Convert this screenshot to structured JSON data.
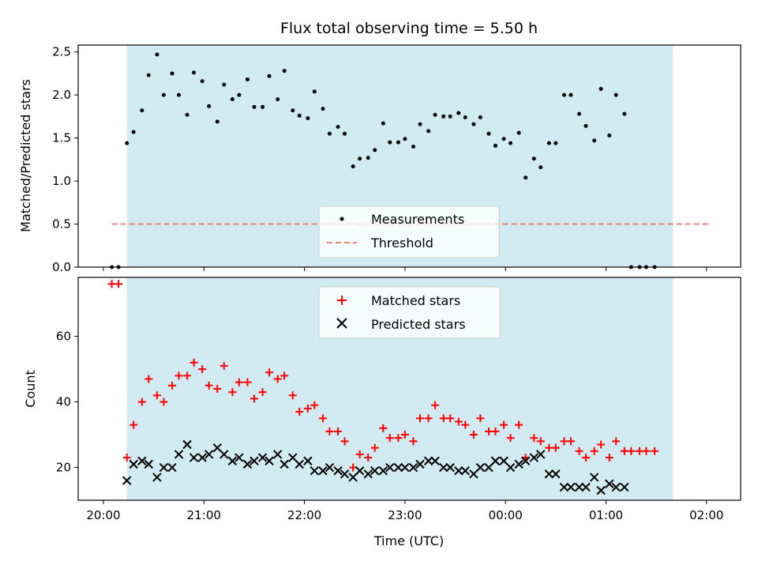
{
  "chart_data": [
    {
      "type": "scatter",
      "title": "Flux total observing time = 5.50 h",
      "xlabel": "",
      "ylabel": "Matched/Predicted stars",
      "ylim": [
        0,
        2.58
      ],
      "yticks": [
        "0.0",
        "0.5",
        "1.0",
        "1.5",
        "2.0",
        "2.5"
      ],
      "ytick_values": [
        0,
        0.5,
        1.0,
        1.5,
        2.0,
        2.5
      ],
      "xlim": [
        "20:00",
        "02:00"
      ],
      "shaded_range": [
        "20:14",
        "01:40"
      ],
      "shade_color": "#add8e6",
      "grid": false,
      "legend_placement": "lower center",
      "legend": [
        {
          "label": "Measurements",
          "marker": "dot",
          "color": "#000000"
        },
        {
          "label": "Threshold",
          "marker": "dashed-line",
          "color": "#f08080"
        }
      ],
      "threshold": {
        "value": 0.5,
        "x_range": [
          "20:05",
          "02:02"
        ],
        "color": "#f08080"
      },
      "series": [
        {
          "name": "Measurements",
          "points": [
            [
              "20:05",
              0.0
            ],
            [
              "20:09",
              0.0
            ],
            [
              "20:14",
              1.44
            ],
            [
              "20:18",
              1.57
            ],
            [
              "20:23",
              1.82
            ],
            [
              "20:27",
              2.23
            ],
            [
              "20:32",
              2.47
            ],
            [
              "20:36",
              2.0
            ],
            [
              "20:41",
              2.25
            ],
            [
              "20:45",
              2.0
            ],
            [
              "20:50",
              1.77
            ],
            [
              "20:54",
              2.26
            ],
            [
              "20:59",
              2.16
            ],
            [
              "21:03",
              1.87
            ],
            [
              "21:08",
              1.69
            ],
            [
              "21:12",
              2.12
            ],
            [
              "21:17",
              1.95
            ],
            [
              "21:21",
              2.0
            ],
            [
              "21:26",
              2.18
            ],
            [
              "21:30",
              1.86
            ],
            [
              "21:35",
              1.86
            ],
            [
              "21:39",
              2.22
            ],
            [
              "21:44",
              1.95
            ],
            [
              "21:48",
              2.28
            ],
            [
              "21:53",
              1.82
            ],
            [
              "21:57",
              1.76
            ],
            [
              "22:02",
              1.73
            ],
            [
              "22:06",
              2.04
            ],
            [
              "22:11",
              1.84
            ],
            [
              "22:15",
              1.55
            ],
            [
              "22:20",
              1.63
            ],
            [
              "22:24",
              1.55
            ],
            [
              "22:29",
              1.17
            ],
            [
              "22:33",
              1.26
            ],
            [
              "22:38",
              1.27
            ],
            [
              "22:42",
              1.36
            ],
            [
              "22:47",
              1.67
            ],
            [
              "22:51",
              1.45
            ],
            [
              "22:56",
              1.45
            ],
            [
              "23:00",
              1.49
            ],
            [
              "23:05",
              1.4
            ],
            [
              "23:09",
              1.66
            ],
            [
              "23:14",
              1.58
            ],
            [
              "23:18",
              1.77
            ],
            [
              "23:23",
              1.75
            ],
            [
              "23:27",
              1.75
            ],
            [
              "23:32",
              1.79
            ],
            [
              "23:36",
              1.74
            ],
            [
              "23:41",
              1.66
            ],
            [
              "23:45",
              1.74
            ],
            [
              "23:50",
              1.55
            ],
            [
              "23:54",
              1.41
            ],
            [
              "23:59",
              1.49
            ],
            [
              "00:03",
              1.44
            ],
            [
              "00:08",
              1.56
            ],
            [
              "00:12",
              1.04
            ],
            [
              "00:17",
              1.26
            ],
            [
              "00:21",
              1.16
            ],
            [
              "00:26",
              1.44
            ],
            [
              "00:30",
              1.44
            ],
            [
              "00:35",
              2.0
            ],
            [
              "00:39",
              2.0
            ],
            [
              "00:44",
              1.78
            ],
            [
              "00:48",
              1.64
            ],
            [
              "00:53",
              1.47
            ],
            [
              "00:57",
              2.07
            ],
            [
              "01:02",
              1.53
            ],
            [
              "01:06",
              2.0
            ],
            [
              "01:11",
              1.78
            ],
            [
              "01:15",
              0.0
            ],
            [
              "01:20",
              0.0
            ],
            [
              "01:24",
              0.0
            ],
            [
              "01:29",
              0.0
            ]
          ]
        }
      ]
    },
    {
      "type": "scatter",
      "title": "",
      "xlabel": "Time (UTC)",
      "ylabel": "Count",
      "ylim": [
        10,
        78
      ],
      "yticks": [
        "20",
        "40",
        "60"
      ],
      "ytick_values": [
        20,
        40,
        60
      ],
      "xlim": [
        "20:00",
        "02:00"
      ],
      "xticks": [
        "20:00",
        "21:00",
        "22:00",
        "23:00",
        "00:00",
        "01:00",
        "02:00"
      ],
      "shaded_range": [
        "20:14",
        "01:40"
      ],
      "shade_color": "#add8e6",
      "grid": false,
      "legend_placement": "upper center",
      "legend": [
        {
          "label": "Matched stars",
          "marker": "plus",
          "color": "#ff0000"
        },
        {
          "label": "Predicted stars",
          "marker": "x",
          "color": "#000000"
        }
      ],
      "series": [
        {
          "name": "Matched stars",
          "points": [
            [
              "20:05",
              76
            ],
            [
              "20:09",
              76
            ],
            [
              "20:14",
              23
            ],
            [
              "20:18",
              33
            ],
            [
              "20:23",
              40
            ],
            [
              "20:27",
              47
            ],
            [
              "20:32",
              42
            ],
            [
              "20:36",
              40
            ],
            [
              "20:41",
              45
            ],
            [
              "20:45",
              48
            ],
            [
              "20:50",
              48
            ],
            [
              "20:54",
              52
            ],
            [
              "20:59",
              50
            ],
            [
              "21:03",
              45
            ],
            [
              "21:08",
              44
            ],
            [
              "21:12",
              51
            ],
            [
              "21:17",
              43
            ],
            [
              "21:21",
              46
            ],
            [
              "21:26",
              46
            ],
            [
              "21:30",
              41
            ],
            [
              "21:35",
              43
            ],
            [
              "21:39",
              49
            ],
            [
              "21:44",
              47
            ],
            [
              "21:48",
              48
            ],
            [
              "21:53",
              42
            ],
            [
              "21:57",
              37
            ],
            [
              "22:02",
              38
            ],
            [
              "22:06",
              39
            ],
            [
              "22:11",
              35
            ],
            [
              "22:15",
              31
            ],
            [
              "22:20",
              31
            ],
            [
              "22:24",
              28
            ],
            [
              "22:29",
              20
            ],
            [
              "22:33",
              24
            ],
            [
              "22:38",
              23
            ],
            [
              "22:42",
              26
            ],
            [
              "22:47",
              32
            ],
            [
              "22:51",
              29
            ],
            [
              "22:56",
              29
            ],
            [
              "23:00",
              30
            ],
            [
              "23:05",
              28
            ],
            [
              "23:09",
              35
            ],
            [
              "23:14",
              35
            ],
            [
              "23:18",
              39
            ],
            [
              "23:23",
              35
            ],
            [
              "23:27",
              35
            ],
            [
              "23:32",
              34
            ],
            [
              "23:36",
              33
            ],
            [
              "23:41",
              30
            ],
            [
              "23:45",
              35
            ],
            [
              "23:50",
              31
            ],
            [
              "23:54",
              31
            ],
            [
              "23:59",
              33
            ],
            [
              "00:03",
              29
            ],
            [
              "00:08",
              33
            ],
            [
              "00:12",
              23
            ],
            [
              "00:17",
              29
            ],
            [
              "00:21",
              28
            ],
            [
              "00:26",
              26
            ],
            [
              "00:30",
              26
            ],
            [
              "00:35",
              28
            ],
            [
              "00:39",
              28
            ],
            [
              "00:44",
              25
            ],
            [
              "00:48",
              23
            ],
            [
              "00:53",
              25
            ],
            [
              "00:57",
              27
            ],
            [
              "01:02",
              23
            ],
            [
              "01:06",
              28
            ],
            [
              "01:11",
              25
            ],
            [
              "01:15",
              25
            ],
            [
              "01:20",
              25
            ],
            [
              "01:24",
              25
            ],
            [
              "01:29",
              25
            ]
          ]
        },
        {
          "name": "Predicted stars",
          "points": [
            [
              "20:14",
              16
            ],
            [
              "20:18",
              21
            ],
            [
              "20:23",
              22
            ],
            [
              "20:27",
              21
            ],
            [
              "20:32",
              17
            ],
            [
              "20:36",
              20
            ],
            [
              "20:41",
              20
            ],
            [
              "20:45",
              24
            ],
            [
              "20:50",
              27
            ],
            [
              "20:54",
              23
            ],
            [
              "20:59",
              23
            ],
            [
              "21:03",
              24
            ],
            [
              "21:08",
              26
            ],
            [
              "21:12",
              24
            ],
            [
              "21:17",
              22
            ],
            [
              "21:21",
              23
            ],
            [
              "21:26",
              21
            ],
            [
              "21:30",
              22
            ],
            [
              "21:35",
              23
            ],
            [
              "21:39",
              22
            ],
            [
              "21:44",
              24
            ],
            [
              "21:48",
              21
            ],
            [
              "21:53",
              23
            ],
            [
              "21:57",
              21
            ],
            [
              "22:02",
              22
            ],
            [
              "22:06",
              19
            ],
            [
              "22:11",
              19
            ],
            [
              "22:15",
              20
            ],
            [
              "22:20",
              19
            ],
            [
              "22:24",
              18
            ],
            [
              "22:29",
              17
            ],
            [
              "22:33",
              19
            ],
            [
              "22:38",
              18
            ],
            [
              "22:42",
              19
            ],
            [
              "22:47",
              19
            ],
            [
              "22:51",
              20
            ],
            [
              "22:56",
              20
            ],
            [
              "23:00",
              20
            ],
            [
              "23:05",
              20
            ],
            [
              "23:09",
              21
            ],
            [
              "23:14",
              22
            ],
            [
              "23:18",
              22
            ],
            [
              "23:23",
              20
            ],
            [
              "23:27",
              20
            ],
            [
              "23:32",
              19
            ],
            [
              "23:36",
              19
            ],
            [
              "23:41",
              18
            ],
            [
              "23:45",
              20
            ],
            [
              "23:50",
              20
            ],
            [
              "23:54",
              22
            ],
            [
              "23:59",
              22
            ],
            [
              "00:03",
              20
            ],
            [
              "00:08",
              21
            ],
            [
              "00:12",
              22
            ],
            [
              "00:17",
              23
            ],
            [
              "00:21",
              24
            ],
            [
              "00:26",
              18
            ],
            [
              "00:30",
              18
            ],
            [
              "00:35",
              14
            ],
            [
              "00:39",
              14
            ],
            [
              "00:44",
              14
            ],
            [
              "00:48",
              14
            ],
            [
              "00:53",
              17
            ],
            [
              "00:57",
              13
            ],
            [
              "01:02",
              15
            ],
            [
              "01:06",
              14
            ],
            [
              "01:11",
              14
            ]
          ]
        }
      ]
    }
  ]
}
